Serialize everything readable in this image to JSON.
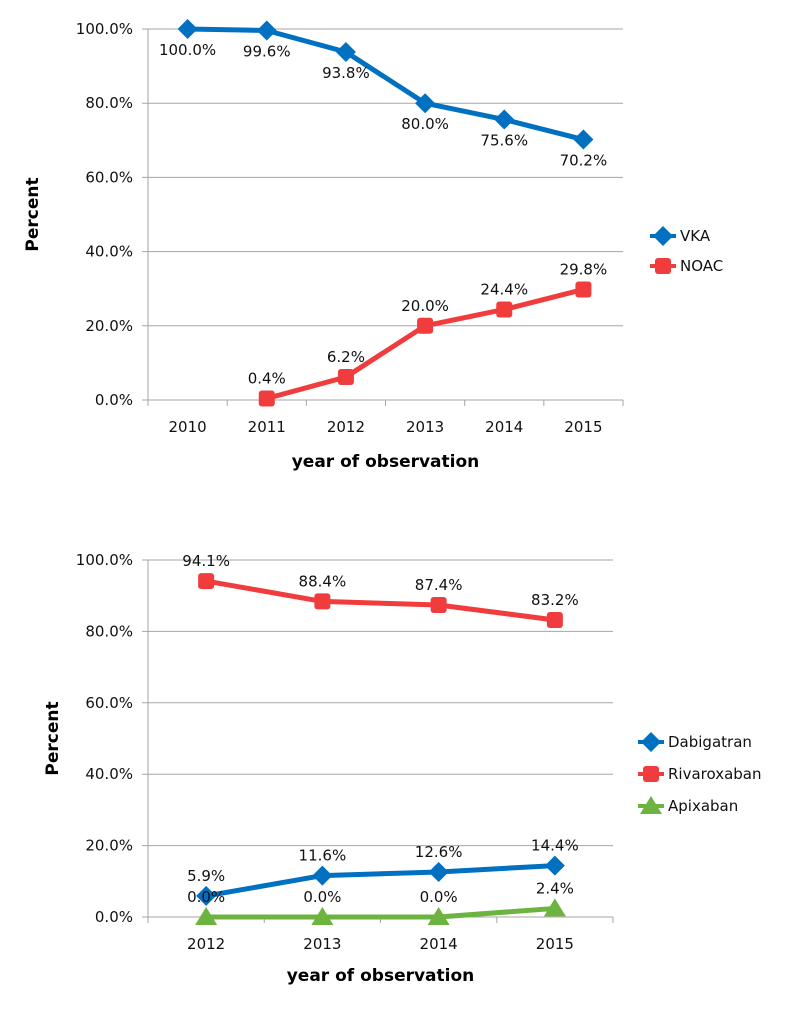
{
  "chart_data": [
    {
      "type": "line",
      "title": "",
      "xlabel": "year of observation",
      "ylabel": "Percent",
      "categories": [
        "2010",
        "2011",
        "2012",
        "2013",
        "2014",
        "2015"
      ],
      "ylim": [
        0,
        100
      ],
      "yticks": [
        "0.0%",
        "20.0%",
        "40.0%",
        "60.0%",
        "80.0%",
        "100.0%"
      ],
      "grid": true,
      "legend_position": "right",
      "series": [
        {
          "name": "VKA",
          "color": "#0070C0",
          "marker": "diamond",
          "values": [
            100.0,
            99.6,
            93.8,
            80.0,
            75.6,
            70.2
          ],
          "labels": [
            "100.0%",
            "99.6%",
            "93.8%",
            "80.0%",
            "75.6%",
            "70.2%"
          ],
          "label_pos": "below"
        },
        {
          "name": "NOAC",
          "color": "#F03C3C",
          "marker": "square",
          "values": [
            null,
            0.4,
            6.2,
            20.0,
            24.4,
            29.8
          ],
          "labels": [
            null,
            "0.4%",
            "6.2%",
            "20.0%",
            "24.4%",
            "29.8%"
          ],
          "label_pos": "above"
        }
      ]
    },
    {
      "type": "line",
      "title": "",
      "xlabel": "year of observation",
      "ylabel": "Percent",
      "categories": [
        "2012",
        "2013",
        "2014",
        "2015"
      ],
      "ylim": [
        0,
        100
      ],
      "yticks": [
        "0.0%",
        "20.0%",
        "40.0%",
        "60.0%",
        "80.0%",
        "100.0%"
      ],
      "grid": true,
      "legend_position": "right",
      "series": [
        {
          "name": "Dabigatran",
          "color": "#0070C0",
          "marker": "diamond",
          "values": [
            5.9,
            11.6,
            12.6,
            14.4
          ],
          "labels": [
            "5.9%",
            "11.6%",
            "12.6%",
            "14.4%"
          ],
          "label_pos": "above"
        },
        {
          "name": "Rivaroxaban",
          "color": "#F03C3C",
          "marker": "square",
          "values": [
            94.1,
            88.4,
            87.4,
            83.2
          ],
          "labels": [
            "94.1%",
            "88.4%",
            "87.4%",
            "83.2%"
          ],
          "label_pos": "above"
        },
        {
          "name": "Apixaban",
          "color": "#6DB33F",
          "marker": "triangle",
          "values": [
            0.0,
            0.0,
            0.0,
            2.4
          ],
          "labels": [
            "0.0%",
            "0.0%",
            "0.0%",
            "2.4%"
          ],
          "label_pos": "above"
        }
      ]
    }
  ]
}
